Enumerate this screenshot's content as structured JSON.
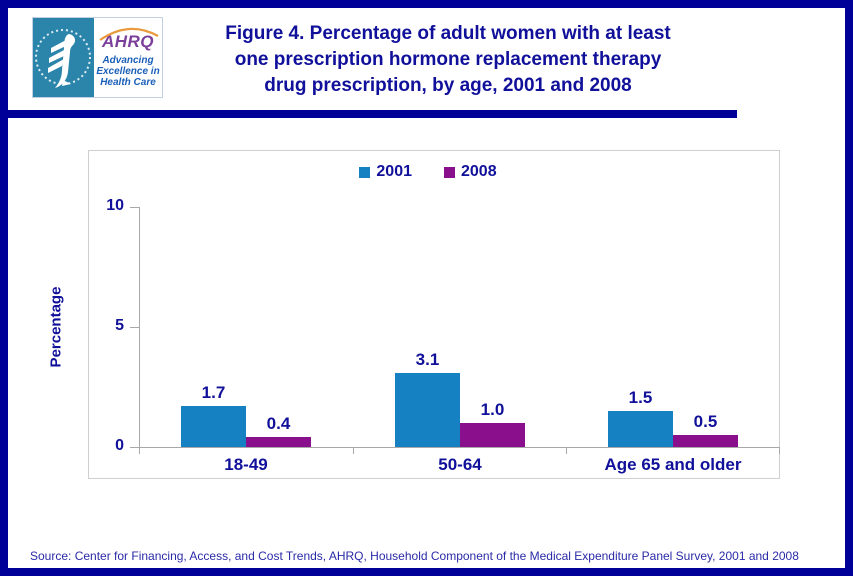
{
  "header": {
    "logo": {
      "hhs_icon": "hhs-eagle-icon",
      "acronym": "AHRQ",
      "tagline_lines": [
        "Advancing",
        "Excellence in",
        "Health Care"
      ]
    },
    "title_lines": [
      "Figure 4. Percentage of adult women with at least",
      "one prescription hormone replacement therapy",
      "drug prescription, by age, 2001 and 2008"
    ]
  },
  "chart_data": {
    "type": "bar",
    "categories": [
      "18-49",
      "50-64",
      "Age 65 and older"
    ],
    "series": [
      {
        "name": "2001",
        "color": "#1581C2",
        "values": [
          1.7,
          3.1,
          1.5
        ],
        "value_labels": [
          "1.7",
          "3.1",
          "1.5"
        ]
      },
      {
        "name": "2008",
        "color": "#8A0F8C",
        "values": [
          0.4,
          1.0,
          0.5
        ],
        "value_labels": [
          "0.4",
          "1.0",
          "0.5"
        ]
      }
    ],
    "ylabel": "Percentage",
    "ylim": [
      0,
      10
    ],
    "yticks": [
      0,
      5,
      10
    ],
    "ytick_labels": [
      "0",
      "5",
      "10"
    ],
    "grid": false,
    "legend_position": "top-center"
  },
  "footer": {
    "source": "Source: Center for Financing, Access, and Cost Trends, AHRQ, Household Component of the Medical Expenditure Panel Survey, 2001 and 2008"
  },
  "colors": {
    "chrome_navy": "#000099",
    "text_navy": "#10109A",
    "axis_gray": "#A8A8A8"
  }
}
